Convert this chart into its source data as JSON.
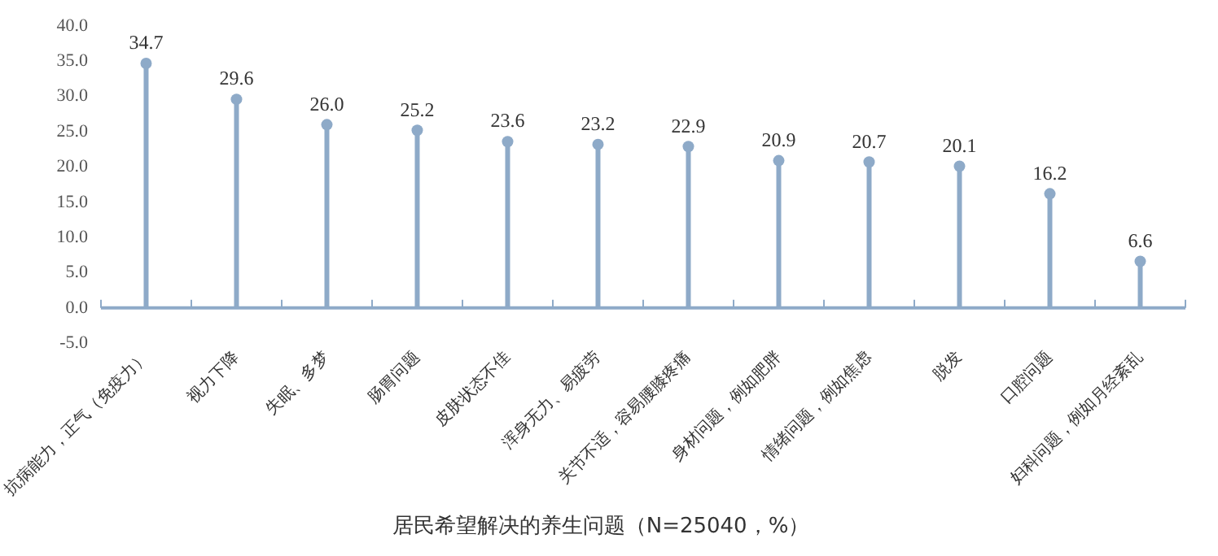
{
  "chart_data": {
    "type": "lollipop",
    "title": "居民希望解决的养生问题（N=25040，%）",
    "categories": [
      "抗病能力，正气（免疫力）",
      "视力下降",
      "失眠、多梦",
      "肠胃问题",
      "皮肤状态不佳",
      "浑身无力、易疲劳",
      "关节不适，容易腰膝疼痛",
      "身材问题，例如肥胖",
      "情绪问题，例如焦虑",
      "脱发",
      "口腔问题",
      "妇科问题，例如月经紊乱"
    ],
    "values": [
      34.7,
      29.6,
      26.0,
      25.2,
      23.6,
      23.2,
      22.9,
      20.9,
      20.7,
      20.1,
      16.2,
      6.6
    ],
    "value_labels": [
      "34.7",
      "29.6",
      "26.0",
      "25.2",
      "23.6",
      "23.2",
      "22.9",
      "20.9",
      "20.7",
      "20.1",
      "16.2",
      "6.6"
    ],
    "color": "#8eaac8",
    "ylim": [
      -5,
      40
    ],
    "yticks": [
      {
        "value": -5,
        "label": "-5.0"
      },
      {
        "value": 0,
        "label": "0.0"
      },
      {
        "value": 5,
        "label": "5.0"
      },
      {
        "value": 10,
        "label": "10.0"
      },
      {
        "value": 15,
        "label": "15.0"
      },
      {
        "value": 20,
        "label": "20.0"
      },
      {
        "value": 25,
        "label": "25.0"
      },
      {
        "value": 30,
        "label": "30.0"
      },
      {
        "value": 35,
        "label": "35.0"
      },
      {
        "value": 40,
        "label": "40.0"
      }
    ],
    "grid": false,
    "legend": false,
    "marker": "circle"
  }
}
